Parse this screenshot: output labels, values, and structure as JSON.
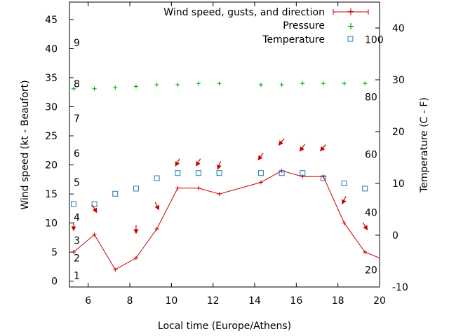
{
  "chart_data": {
    "type": "line",
    "xlabel": "Local time (Europe/Athens)",
    "ylabel_left": "Wind speed (kt - Beaufort)",
    "ylabel_right": "Temperature (C - F)",
    "xlim": [
      5.1,
      20
    ],
    "ylim_left": [
      -1,
      48
    ],
    "ylim_right": [
      -10,
      45
    ],
    "x_ticks": [
      6,
      8,
      10,
      12,
      14,
      16,
      18,
      20
    ],
    "y_left_ticks": [
      0,
      5,
      10,
      15,
      20,
      25,
      30,
      35,
      40,
      45
    ],
    "y_right_ticks": [
      -10,
      0,
      10,
      20,
      30,
      40
    ],
    "beaufort_labels": [
      {
        "label": "1",
        "y": 1
      },
      {
        "label": "2",
        "y": 4
      },
      {
        "label": "3",
        "y": 7
      },
      {
        "label": "4",
        "y": 11
      },
      {
        "label": "5",
        "y": 17
      },
      {
        "label": "6",
        "y": 22
      },
      {
        "label": "7",
        "y": 28
      },
      {
        "label": "8",
        "y": 34
      },
      {
        "label": "9",
        "y": 41
      }
    ],
    "fahrenheit_labels": [
      {
        "label": "20",
        "temp": -6.7
      },
      {
        "label": "40",
        "temp": 4.4
      },
      {
        "label": "60",
        "temp": 15.6
      },
      {
        "label": "80",
        "temp": 26.7
      },
      {
        "label": "100",
        "temp": 37.8
      }
    ],
    "legend_position": "top-right",
    "series": [
      {
        "name": "Wind speed, gusts, and direction",
        "color": "#cc0000",
        "x": [
          5.3,
          6.3,
          7.3,
          8.3,
          9.3,
          10.3,
          11.3,
          12.3,
          14.3,
          15.3,
          16.3,
          17.3,
          18.3,
          19.3,
          20
        ],
        "values": [
          5,
          8,
          2,
          4,
          9,
          16,
          16,
          15,
          17,
          19,
          18,
          18,
          10,
          5,
          4
        ]
      },
      {
        "name": "Pressure",
        "color": "#00a000",
        "x": [
          5.3,
          6.3,
          7.3,
          8.3,
          9.3,
          10.3,
          11.3,
          12.3,
          14.3,
          15.3,
          16.3,
          17.3,
          18.3,
          19.3
        ],
        "values": [
          33.1,
          33.1,
          33.3,
          33.5,
          33.8,
          33.8,
          34,
          34,
          33.8,
          33.8,
          34,
          34,
          34,
          34
        ]
      },
      {
        "name": "Temperature",
        "color": "#1f77b4",
        "x": [
          5.3,
          6.3,
          7.3,
          8.3,
          9.3,
          10.3,
          11.3,
          12.3,
          14.3,
          15.3,
          16.3,
          17.3,
          18.3,
          19.3
        ],
        "values": [
          6,
          6,
          8,
          9,
          11,
          12,
          12,
          12,
          12,
          12,
          12,
          11,
          10,
          9
        ]
      }
    ],
    "wind_direction_arrows": [
      {
        "x": 5.3,
        "y": 9.5,
        "dir_deg": 0
      },
      {
        "x": 6.3,
        "y": 12.5,
        "dir_deg": 330
      },
      {
        "x": 8.3,
        "y": 9,
        "dir_deg": 0
      },
      {
        "x": 9.3,
        "y": 13,
        "dir_deg": 335
      },
      {
        "x": 10.3,
        "y": 20.5,
        "dir_deg": 30
      },
      {
        "x": 11.3,
        "y": 20.5,
        "dir_deg": 30
      },
      {
        "x": 12.3,
        "y": 20,
        "dir_deg": 20
      },
      {
        "x": 14.3,
        "y": 21.5,
        "dir_deg": 35
      },
      {
        "x": 15.3,
        "y": 24,
        "dir_deg": 40
      },
      {
        "x": 16.3,
        "y": 23,
        "dir_deg": 35
      },
      {
        "x": 17.3,
        "y": 23,
        "dir_deg": 40
      },
      {
        "x": 18.3,
        "y": 14,
        "dir_deg": 25
      },
      {
        "x": 19.3,
        "y": 9.5,
        "dir_deg": 330
      }
    ]
  }
}
